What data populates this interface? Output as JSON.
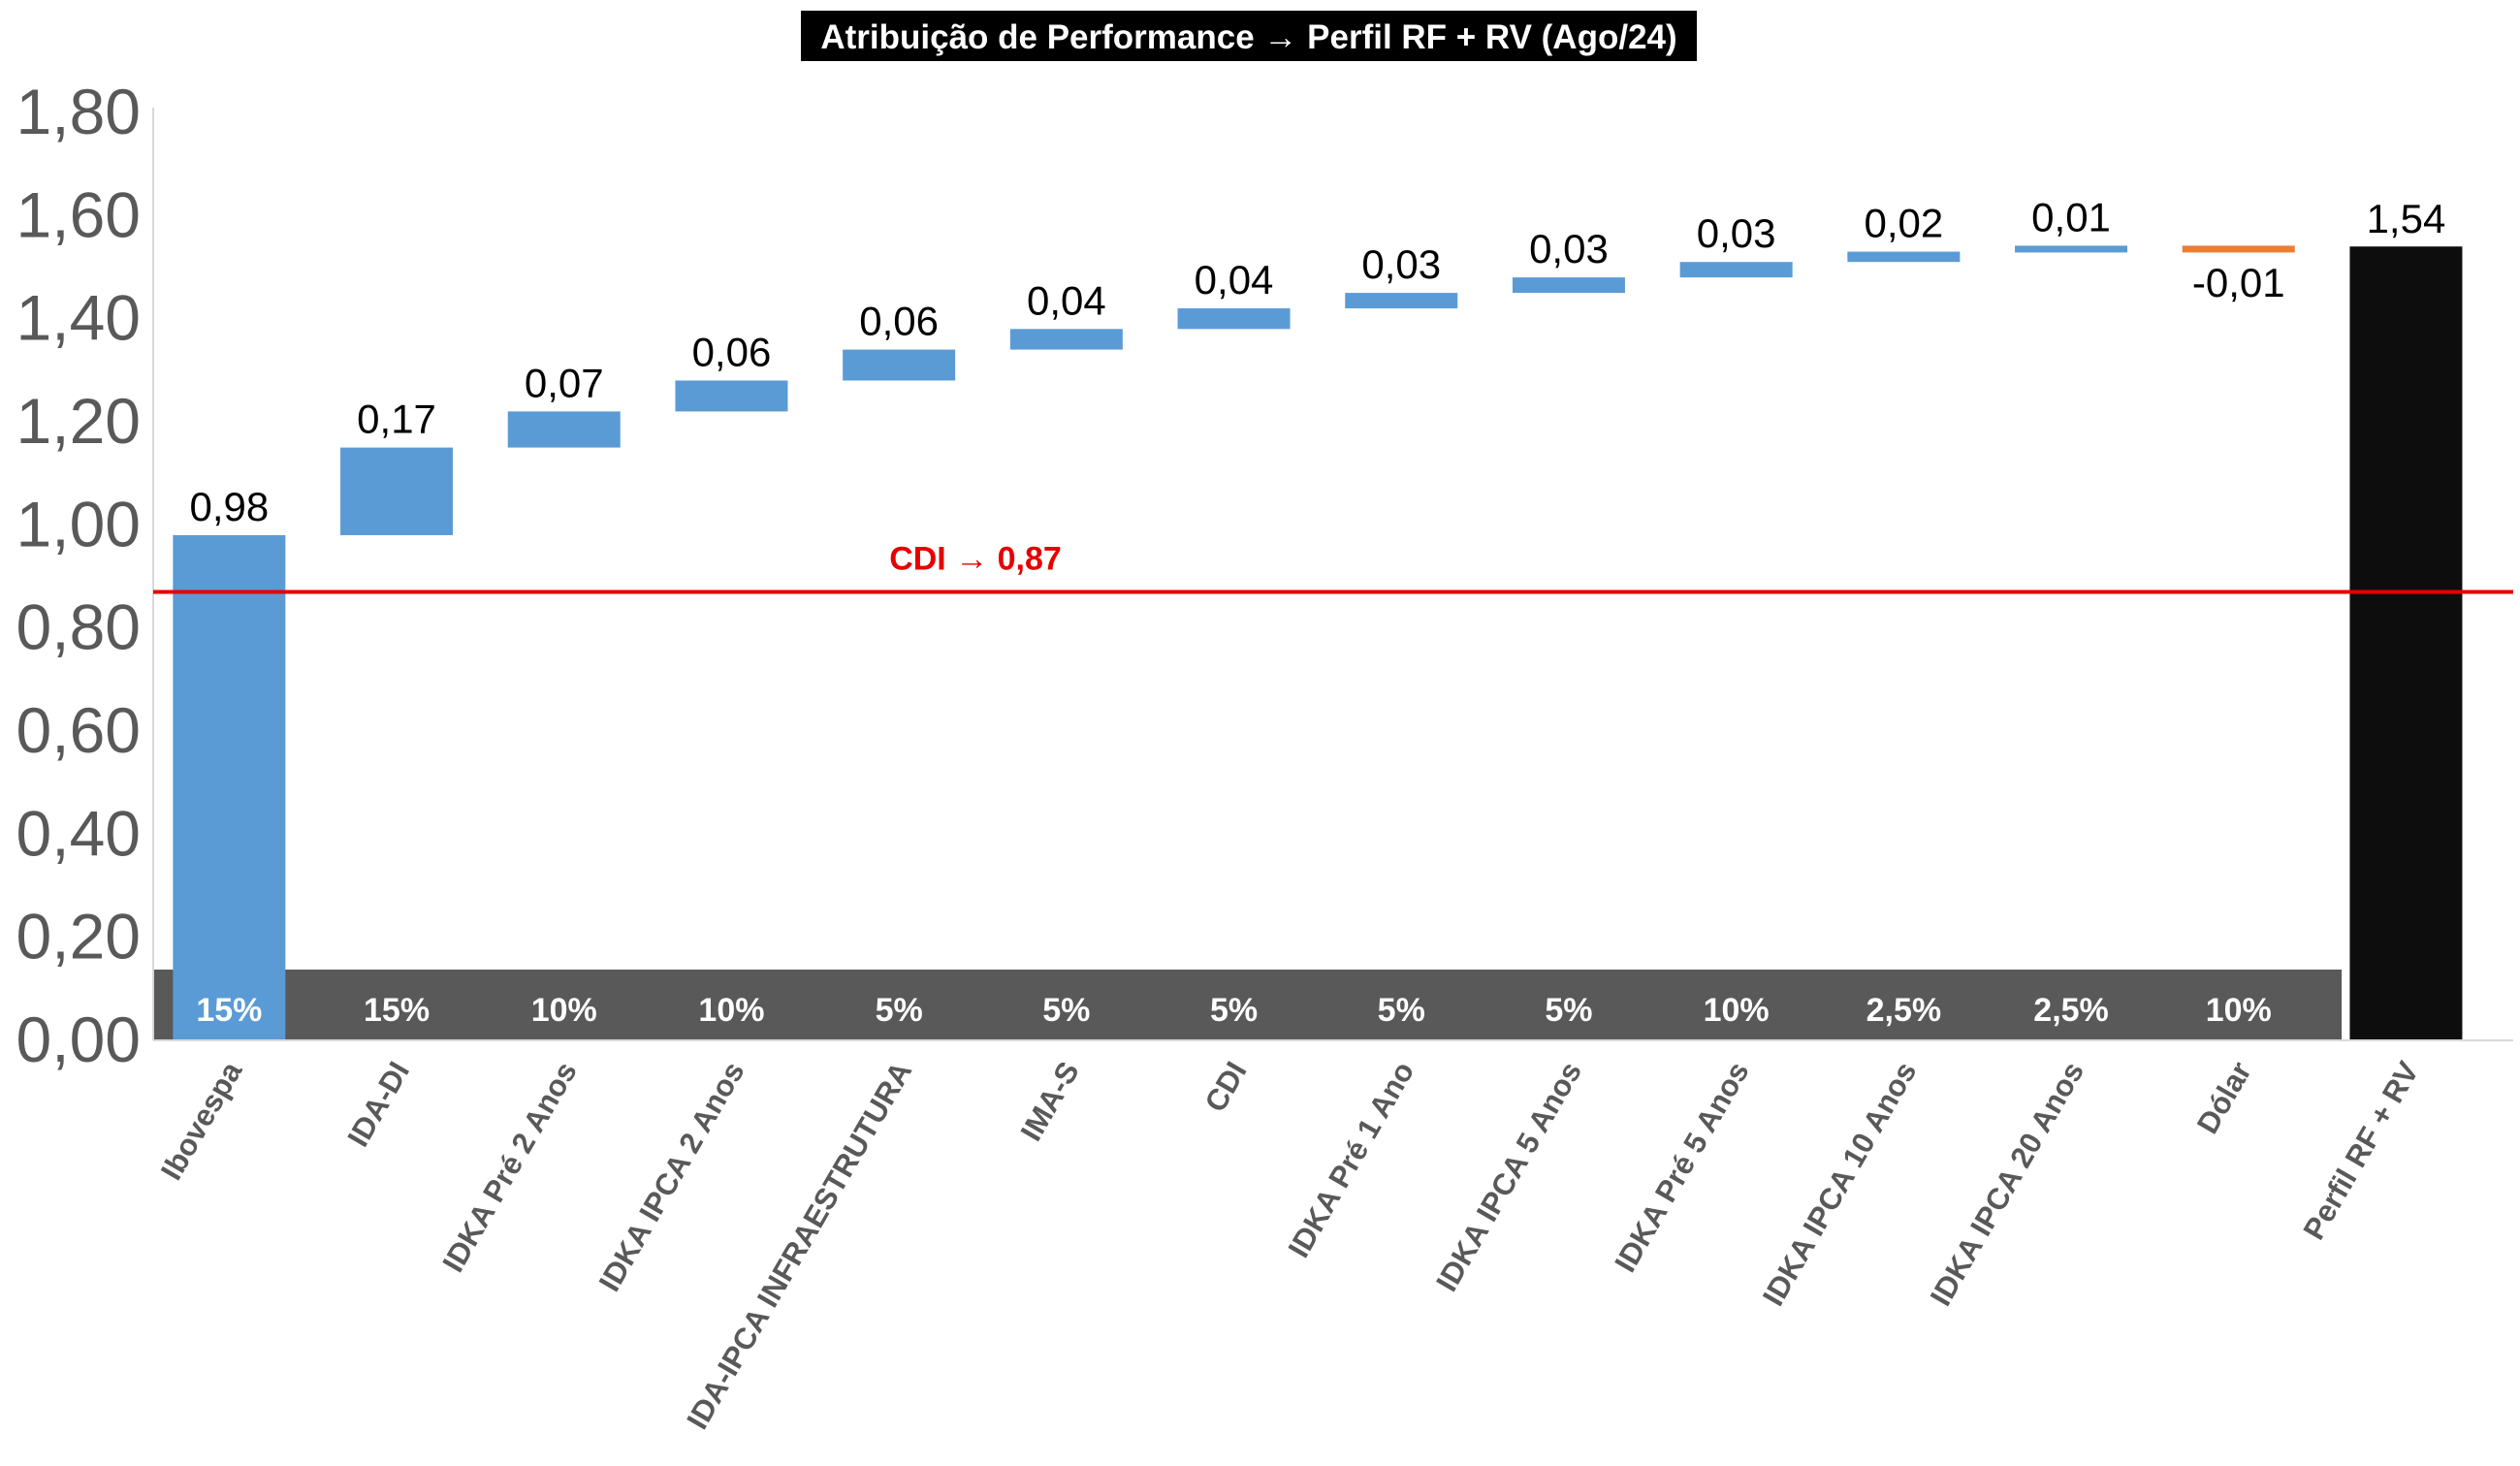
{
  "chart_data": {
    "type": "bar",
    "subtype": "waterfall",
    "title": "Atribuição de Performance → Perfil RF + RV (Ago/24)",
    "categories": [
      "Ibovespa",
      "IDA-DI",
      "IDKA Pré 2 Anos",
      "IDKA IPCA 2 Anos",
      "IDA-IPCA INFRAESTRUTURA",
      "IMA-S",
      "CDI",
      "IDKA Pré 1 Ano",
      "IDKA IPCA 5 Anos",
      "IDKA Pré 5 Anos",
      "IDKA IPCA 10 Anos",
      "IDKA IPCA 20 Anos",
      "Dólar",
      "Perfil RF + RV"
    ],
    "values": [
      0.98,
      0.17,
      0.07,
      0.06,
      0.06,
      0.04,
      0.04,
      0.03,
      0.03,
      0.03,
      0.02,
      0.01,
      -0.01,
      1.54
    ],
    "value_labels": [
      "0,98",
      "0,17",
      "0,07",
      "0,06",
      "0,06",
      "0,04",
      "0,04",
      "0,03",
      "0,03",
      "0,03",
      "0,02",
      "0,01",
      "-0,01",
      "1,54"
    ],
    "bases": [
      0,
      0.98,
      1.15,
      1.22,
      1.28,
      1.34,
      1.38,
      1.42,
      1.45,
      1.48,
      1.51,
      1.53,
      1.54,
      0
    ],
    "kinds": [
      "increase",
      "increase",
      "increase",
      "increase",
      "increase",
      "increase",
      "increase",
      "increase",
      "increase",
      "increase",
      "increase",
      "increase",
      "decrease",
      "total"
    ],
    "weights": [
      "15%",
      "15%",
      "10%",
      "10%",
      "5%",
      "5%",
      "5%",
      "5%",
      "5%",
      "10%",
      "2,5%",
      "2,5%",
      "10%"
    ],
    "yticks": [
      "0,00",
      "0,20",
      "0,40",
      "0,60",
      "0,80",
      "1,00",
      "1,20",
      "1,40",
      "1,60",
      "1,80"
    ],
    "ylim": [
      0,
      1.8
    ],
    "reference_line": {
      "value": 0.87,
      "label": "CDI → 0,87",
      "color": "#e60000"
    },
    "colors": {
      "increase": "#5b9bd5",
      "decrease": "#ed7d31",
      "total": "#0d0d0d",
      "weight_band": "#595959",
      "axis": "#d9d9d9"
    },
    "xlabel": "",
    "ylabel": "",
    "grid": false,
    "legend": "none"
  }
}
